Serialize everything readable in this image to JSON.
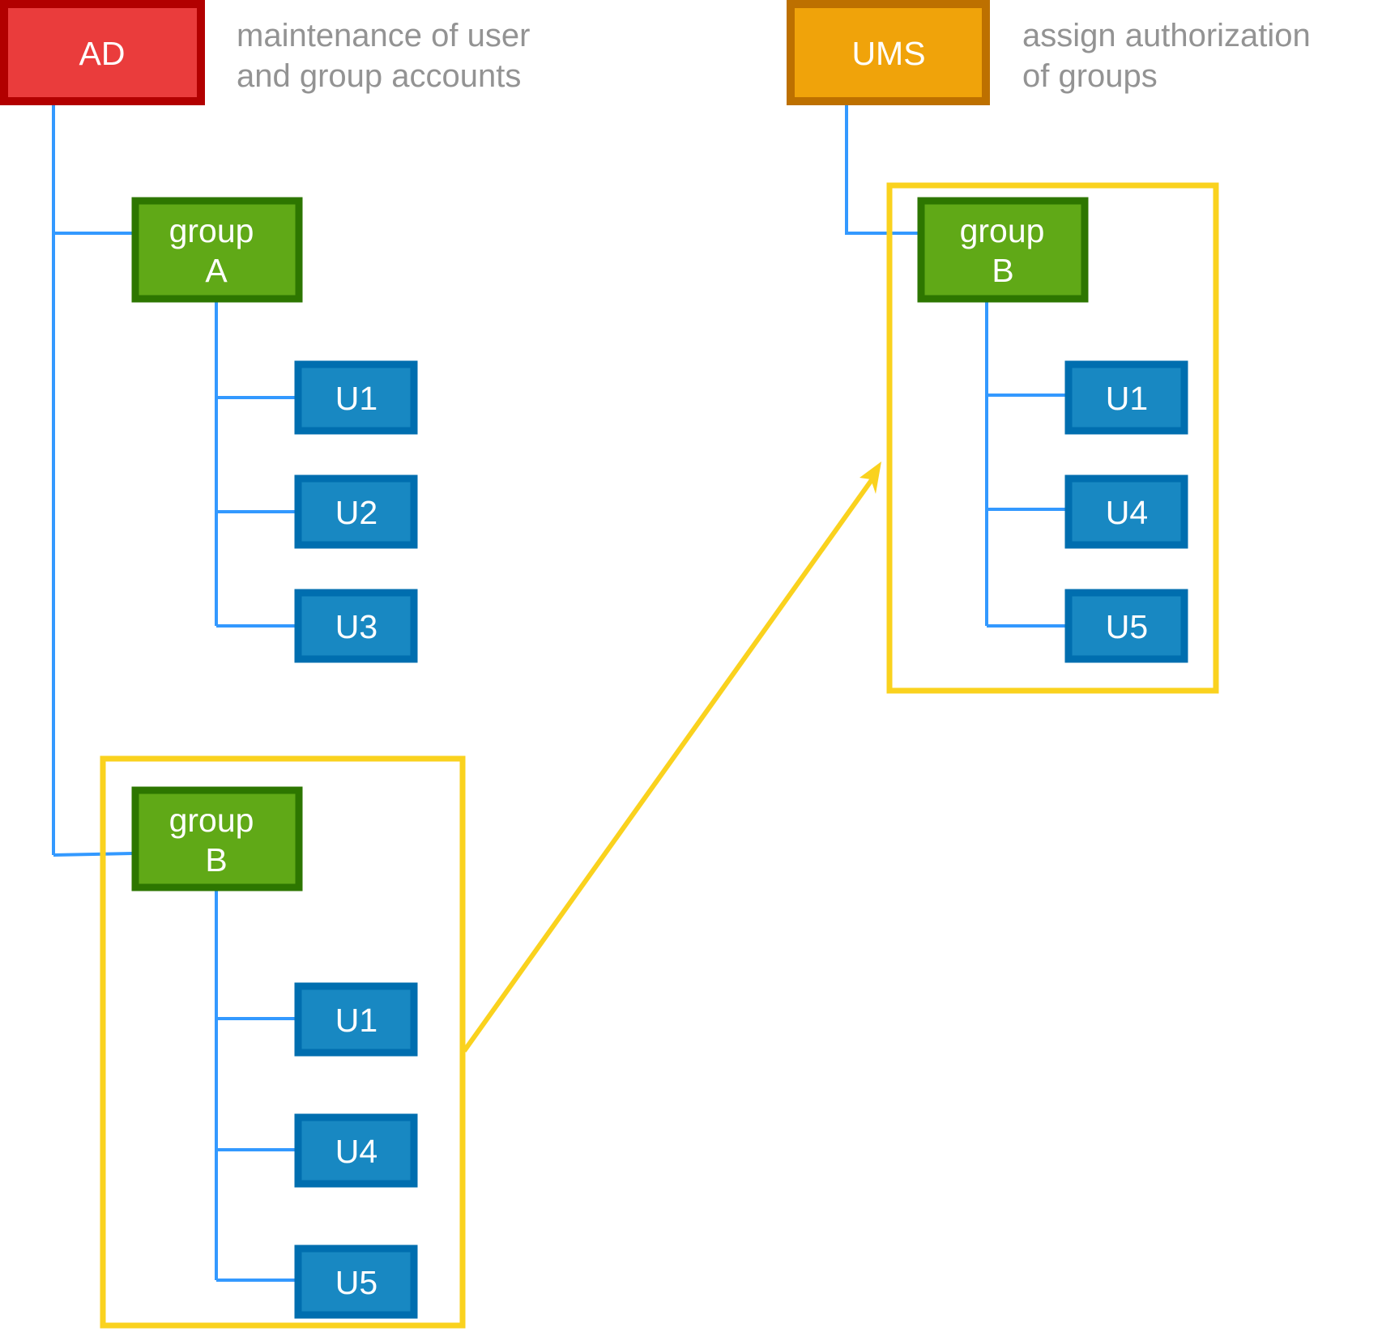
{
  "colors": {
    "ad_fill": "#ea3c3c",
    "ad_border": "#b20000",
    "ums_fill": "#f0a30a",
    "ums_border": "#bd7000",
    "group_fill": "#60a917",
    "group_border": "#2d7600",
    "user_fill": "#1888c2",
    "user_border": "#006eaf",
    "connector": "#3399ff",
    "highlight": "#fad21e"
  },
  "ad": {
    "label": "AD",
    "description": [
      "maintenance of user",
      "and group accounts"
    ],
    "groups": [
      {
        "label": [
          "group",
          "A"
        ],
        "users": [
          "U1",
          "U2",
          "U3"
        ]
      },
      {
        "label": [
          "group",
          "B"
        ],
        "users": [
          "U1",
          "U4",
          "U5"
        ]
      }
    ]
  },
  "ums": {
    "label": "UMS",
    "description": [
      "assign authorization",
      "of groups"
    ],
    "groups": [
      {
        "label": [
          "group",
          "B"
        ],
        "users": [
          "U1",
          "U4",
          "U5"
        ]
      }
    ]
  }
}
